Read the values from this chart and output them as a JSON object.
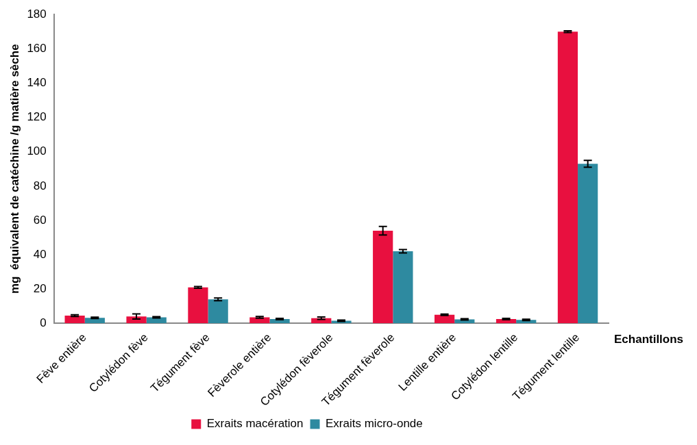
{
  "chart_data": {
    "type": "bar",
    "xlabel": "Echantillons",
    "ylabel": "mg  équivalent de catéchine /g matière sèche",
    "categories": [
      "Fève entière",
      "Cotylédon fève",
      "Tégument fève",
      "Fèverole entière",
      "Cotylédon fèverole",
      "Tégument fèverole",
      "Lentille entière",
      "Cotylédon lentille",
      "Tégument lentille"
    ],
    "series": [
      {
        "name": "Exraits macération",
        "color": "#e8103f",
        "values": [
          4.5,
          4,
          21,
          3.5,
          3,
          54,
          5,
          2.5,
          170
        ],
        "errors": [
          0.5,
          1.5,
          0.5,
          0.5,
          0.7,
          2.5,
          0.4,
          0.4,
          0.5
        ]
      },
      {
        "name": "Exraits micro-onde",
        "color": "#2e8aa0",
        "values": [
          3.2,
          3.5,
          14,
          2.5,
          1.5,
          42,
          2.3,
          2,
          93
        ],
        "errors": [
          0.4,
          0.4,
          0.8,
          0.4,
          0.4,
          1,
          0.4,
          0.4,
          2
        ]
      }
    ],
    "ylim": [
      0,
      180
    ],
    "yticks": [
      0,
      20,
      40,
      60,
      80,
      100,
      120,
      140,
      160,
      180
    ],
    "grid": false,
    "legend": "bottom"
  }
}
